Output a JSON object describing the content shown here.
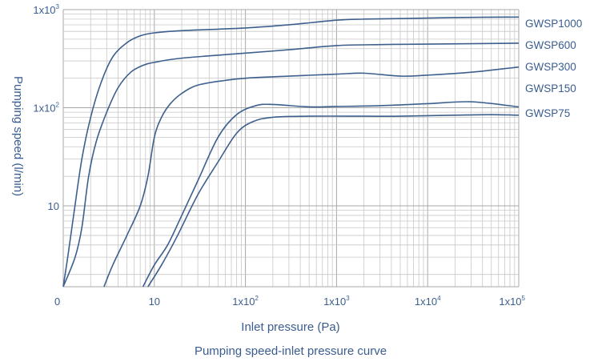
{
  "chart_data": {
    "type": "line",
    "caption": "Pumping speed-inlet pressure curve",
    "xlabel": "Inlet pressure (Pa)",
    "ylabel": "Pumping speed (l/min)",
    "x_scale": "log",
    "y_scale": "log",
    "xlim": [
      1,
      100000
    ],
    "ylim": [
      1.5,
      1000
    ],
    "grid": true,
    "x_ticks": [
      {
        "value": 1,
        "base": "0",
        "exp": ""
      },
      {
        "value": 10,
        "base": "10",
        "exp": ""
      },
      {
        "value": 100,
        "base": "1x10",
        "exp": "2"
      },
      {
        "value": 1000,
        "base": "1x10",
        "exp": "3"
      },
      {
        "value": 10000,
        "base": "1x10",
        "exp": "4"
      },
      {
        "value": 100000,
        "base": "1x10",
        "exp": "5"
      }
    ],
    "y_ticks": [
      {
        "value": 10,
        "base": "10",
        "exp": ""
      },
      {
        "value": 100,
        "base": "1x10",
        "exp": "2"
      },
      {
        "value": 1000,
        "base": "1x10",
        "exp": "3"
      }
    ],
    "series": [
      {
        "name": "GWSP1000",
        "points": [
          [
            1,
            1.5
          ],
          [
            1.12,
            3
          ],
          [
            1.3,
            8
          ],
          [
            1.6,
            30
          ],
          [
            2,
            80
          ],
          [
            2.6,
            180
          ],
          [
            3.5,
            330
          ],
          [
            5,
            460
          ],
          [
            7,
            540
          ],
          [
            10,
            580
          ],
          [
            20,
            610
          ],
          [
            100,
            650
          ],
          [
            300,
            700
          ],
          [
            1000,
            780
          ],
          [
            2000,
            800
          ],
          [
            5000,
            810
          ],
          [
            20000,
            830
          ],
          [
            100000,
            840
          ]
        ]
      },
      {
        "name": "GWSP600",
        "points": [
          [
            1,
            1.5
          ],
          [
            1.35,
            3
          ],
          [
            1.6,
            6
          ],
          [
            1.9,
            20
          ],
          [
            2.3,
            45
          ],
          [
            3,
            90
          ],
          [
            4,
            160
          ],
          [
            5.5,
            230
          ],
          [
            7.5,
            270
          ],
          [
            10,
            290
          ],
          [
            20,
            320
          ],
          [
            100,
            360
          ],
          [
            300,
            390
          ],
          [
            1000,
            430
          ],
          [
            3000,
            440
          ],
          [
            10000,
            445
          ],
          [
            100000,
            455
          ]
        ]
      },
      {
        "name": "GWSP300",
        "points": [
          [
            2.8,
            1.5
          ],
          [
            3.5,
            2.5
          ],
          [
            5,
            5
          ],
          [
            7,
            10
          ],
          [
            8.5,
            20
          ],
          [
            10,
            50
          ],
          [
            12,
            80
          ],
          [
            15,
            110
          ],
          [
            20,
            140
          ],
          [
            30,
            170
          ],
          [
            60,
            190
          ],
          [
            100,
            200
          ],
          [
            300,
            210
          ],
          [
            1000,
            220
          ],
          [
            2000,
            225
          ],
          [
            5000,
            210
          ],
          [
            10000,
            215
          ],
          [
            30000,
            230
          ],
          [
            100000,
            260
          ]
        ]
      },
      {
        "name": "GWSP150",
        "points": [
          [
            7.5,
            1.5
          ],
          [
            10,
            2.5
          ],
          [
            14,
            4
          ],
          [
            20,
            8
          ],
          [
            30,
            18
          ],
          [
            50,
            50
          ],
          [
            80,
            85
          ],
          [
            130,
            105
          ],
          [
            200,
            108
          ],
          [
            500,
            102
          ],
          [
            1000,
            103
          ],
          [
            3000,
            105
          ],
          [
            10000,
            110
          ],
          [
            30000,
            115
          ],
          [
            100000,
            102
          ]
        ]
      },
      {
        "name": "GWSP75",
        "points": [
          [
            8.5,
            1.5
          ],
          [
            12,
            2.5
          ],
          [
            18,
            5
          ],
          [
            30,
            13
          ],
          [
            50,
            28
          ],
          [
            80,
            55
          ],
          [
            120,
            72
          ],
          [
            200,
            80
          ],
          [
            500,
            82
          ],
          [
            2000,
            82
          ],
          [
            5000,
            82
          ],
          [
            20000,
            84
          ],
          [
            50000,
            85
          ],
          [
            100000,
            84
          ]
        ]
      }
    ]
  }
}
